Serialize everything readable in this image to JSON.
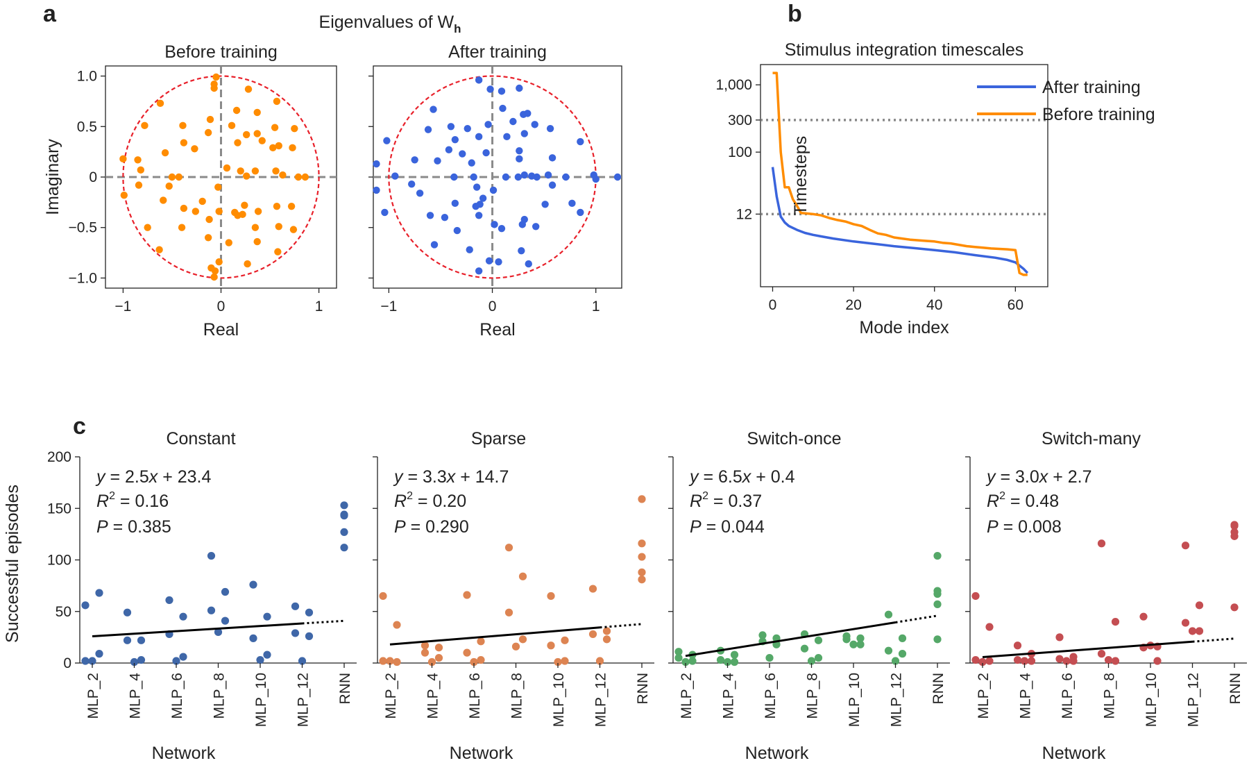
{
  "panel_letters": {
    "a": "a",
    "b": "b",
    "c": "c"
  },
  "colors": {
    "orange": "#ff8c00",
    "blue": "#3a64dc",
    "unit_circle": "#e8202a",
    "axis_dash": "#8a8a8a",
    "grid_dot": "#888888",
    "c_constant": "#3f67a8",
    "c_sparse": "#dd8452",
    "c_switch_once": "#55a868",
    "c_switch_many": "#c44e52"
  },
  "chart_data": [
    {
      "type": "scatter",
      "id": "eig-before",
      "supertitle": "Eigenvalues of W",
      "supertitle_sub": "h",
      "title": "Before training",
      "xlabel": "Real",
      "ylabel": "Imaginary",
      "xlim": [
        -1.18,
        1.18
      ],
      "ylim": [
        -1.1,
        1.1
      ],
      "xticks": [
        -1,
        0,
        1
      ],
      "xtick_labels": [
        "−1",
        "0",
        "1"
      ],
      "yticks": [
        1.0,
        0.5,
        0,
        -0.5,
        -1.0
      ],
      "ytick_labels": [
        "1.0",
        "0.5",
        "0",
        "−0.5",
        "−1.0"
      ],
      "reference_circle_radius": 1,
      "points": [
        [
          -0.05,
          0.99
        ],
        [
          -0.07,
          0.92
        ],
        [
          -0.07,
          0.88
        ],
        [
          -0.62,
          0.73
        ],
        [
          0.28,
          0.87
        ],
        [
          0.57,
          0.75
        ],
        [
          0.16,
          0.66
        ],
        [
          0.37,
          0.64
        ],
        [
          -0.78,
          0.51
        ],
        [
          -0.11,
          0.57
        ],
        [
          -0.13,
          0.44
        ],
        [
          -0.39,
          0.51
        ],
        [
          -0.57,
          0.24
        ],
        [
          -0.38,
          0.34
        ],
        [
          -0.27,
          0.28
        ],
        [
          0.11,
          0.51
        ],
        [
          0.26,
          0.42
        ],
        [
          0.37,
          0.43
        ],
        [
          0.55,
          0.49
        ],
        [
          0.75,
          0.48
        ],
        [
          0.17,
          0.34
        ],
        [
          0.42,
          0.36
        ],
        [
          0.59,
          0.31
        ],
        [
          0.53,
          0.29
        ],
        [
          0.73,
          0.29
        ],
        [
          -1.0,
          0.18
        ],
        [
          -0.85,
          0.17
        ],
        [
          -0.82,
          0.07
        ],
        [
          -0.5,
          0
        ],
        [
          -0.43,
          0
        ],
        [
          0.06,
          0.09
        ],
        [
          0.2,
          0.06
        ],
        [
          0.35,
          0.06
        ],
        [
          0.26,
          0.01
        ],
        [
          0.56,
          0.06
        ],
        [
          0.63,
          0.02
        ],
        [
          0.79,
          0
        ],
        [
          0.86,
          0
        ],
        [
          -0.84,
          -0.08
        ],
        [
          -0.53,
          -0.09
        ],
        [
          -0.03,
          -0.1
        ],
        [
          -0.59,
          -0.23
        ],
        [
          -0.19,
          -0.24
        ],
        [
          -0.38,
          -0.31
        ],
        [
          -0.26,
          -0.34
        ],
        [
          0.24,
          -0.28
        ],
        [
          0.14,
          -0.35
        ],
        [
          0.22,
          -0.37
        ],
        [
          0.38,
          -0.34
        ],
        [
          0.57,
          -0.29
        ],
        [
          0.72,
          -0.29
        ],
        [
          -0.02,
          -0.34
        ],
        [
          -0.75,
          -0.5
        ],
        [
          -0.4,
          -0.5
        ],
        [
          -0.12,
          -0.42
        ],
        [
          0.17,
          -0.38
        ],
        [
          0.35,
          -0.5
        ],
        [
          0.59,
          -0.49
        ],
        [
          0.74,
          -0.52
        ],
        [
          -0.13,
          -0.6
        ],
        [
          0.08,
          -0.65
        ],
        [
          0.37,
          -0.64
        ],
        [
          -0.63,
          -0.72
        ],
        [
          0.58,
          -0.74
        ],
        [
          0.27,
          -0.86
        ],
        [
          -0.06,
          -0.93
        ],
        [
          -0.07,
          -0.99
        ],
        [
          -0.02,
          -0.84
        ],
        [
          -0.1,
          -0.9
        ],
        [
          -0.99,
          -0.18
        ]
      ]
    },
    {
      "type": "scatter",
      "id": "eig-after",
      "title": "After training",
      "xlabel": "Real",
      "xlim": [
        -1.15,
        1.25
      ],
      "ylim": [
        -1.1,
        1.1
      ],
      "xticks": [
        -1,
        0,
        1
      ],
      "xtick_labels": [
        "−1",
        "0",
        "1"
      ],
      "reference_circle_radius": 1,
      "points": [
        [
          -0.13,
          0.96
        ],
        [
          -0.02,
          0.87
        ],
        [
          0.09,
          0.85
        ],
        [
          0.26,
          0.88
        ],
        [
          -0.57,
          0.67
        ],
        [
          0.1,
          0.68
        ],
        [
          0.3,
          0.62
        ],
        [
          0.2,
          0.55
        ],
        [
          0.41,
          0.52
        ],
        [
          0.56,
          0.48
        ],
        [
          -0.62,
          0.47
        ],
        [
          -0.4,
          0.5
        ],
        [
          -0.24,
          0.48
        ],
        [
          -0.04,
          0.52
        ],
        [
          0.34,
          0.63
        ],
        [
          -0.36,
          0.37
        ],
        [
          -0.42,
          0.27
        ],
        [
          -0.13,
          0.4
        ],
        [
          0.14,
          0.4
        ],
        [
          -0.29,
          0.23
        ],
        [
          0.26,
          0.26
        ],
        [
          0.31,
          0.43
        ],
        [
          0.58,
          0.19
        ],
        [
          -1.02,
          0.36
        ],
        [
          -1.12,
          0.13
        ],
        [
          -0.75,
          0.17
        ],
        [
          -0.53,
          0.16
        ],
        [
          -0.2,
          0.14
        ],
        [
          -0.06,
          0.24
        ],
        [
          0.26,
          0.18
        ],
        [
          0.38,
          0.01
        ],
        [
          0.85,
          0.35
        ],
        [
          -0.94,
          0.01
        ],
        [
          -0.37,
          0
        ],
        [
          -0.18,
          0
        ],
        [
          0.13,
          0
        ],
        [
          0.25,
          0
        ],
        [
          0.31,
          0.02
        ],
        [
          0.43,
          0
        ],
        [
          0.54,
          0.02
        ],
        [
          0.71,
          0
        ],
        [
          0.98,
          0.02
        ],
        [
          1.0,
          -0.02
        ],
        [
          1.21,
          0
        ],
        [
          -1.12,
          -0.13
        ],
        [
          -0.78,
          -0.07
        ],
        [
          -0.15,
          -0.1
        ],
        [
          0.58,
          -0.08
        ],
        [
          0.01,
          -0.13
        ],
        [
          -0.7,
          -0.16
        ],
        [
          -0.36,
          -0.26
        ],
        [
          -0.09,
          -0.21
        ],
        [
          -0.12,
          -0.27
        ],
        [
          -0.16,
          -0.29
        ],
        [
          0.51,
          -0.27
        ],
        [
          0.77,
          -0.26
        ],
        [
          -1.04,
          -0.35
        ],
        [
          -0.6,
          -0.38
        ],
        [
          -0.46,
          -0.4
        ],
        [
          -0.13,
          -0.38
        ],
        [
          0.31,
          -0.42
        ],
        [
          0.09,
          -0.51
        ],
        [
          0.29,
          -0.47
        ],
        [
          0.42,
          -0.49
        ],
        [
          0.02,
          -0.47
        ],
        [
          -0.34,
          -0.53
        ],
        [
          -0.56,
          -0.67
        ],
        [
          -0.03,
          -0.83
        ],
        [
          0.28,
          -0.73
        ],
        [
          0.85,
          -0.35
        ],
        [
          -0.22,
          -0.72
        ],
        [
          0.06,
          -0.84
        ],
        [
          0.35,
          -0.86
        ],
        [
          -0.13,
          -0.93
        ]
      ]
    },
    {
      "type": "line",
      "id": "timescales",
      "title": "Stimulus integration timescales",
      "xlabel": "Mode index",
      "ylabel": "Timesteps",
      "xlim": [
        -3,
        68
      ],
      "xticks": [
        0,
        20,
        40,
        60
      ],
      "ylim_log": [
        1,
        2000
      ],
      "yticks": [
        1000,
        300,
        100,
        12
      ],
      "ytick_labels": [
        "1,000",
        "300",
        "100",
        "12"
      ],
      "hlines": [
        300,
        12
      ],
      "legend": "top-right",
      "series": [
        {
          "name": "After training",
          "color": "#3a64dc",
          "x": [
            0,
            1,
            2,
            3,
            4,
            6,
            8,
            10,
            12,
            15,
            20,
            25,
            30,
            35,
            40,
            45,
            50,
            55,
            58,
            60,
            62,
            63
          ],
          "y": [
            60,
            22,
            11,
            9,
            8,
            7,
            6.3,
            5.9,
            5.6,
            5.2,
            4.7,
            4.35,
            4.0,
            3.75,
            3.5,
            3.25,
            2.95,
            2.7,
            2.5,
            2.3,
            1.85,
            1.6
          ]
        },
        {
          "name": "Before training",
          "color": "#ff8c00",
          "x": [
            0,
            1,
            2,
            3,
            4,
            5,
            6,
            7,
            8,
            10,
            12,
            14,
            16,
            18,
            20,
            22,
            24,
            26,
            28,
            30,
            32,
            34,
            36,
            38,
            40,
            42,
            44,
            46,
            48,
            50,
            52,
            54,
            56,
            58,
            60,
            61,
            62,
            63
          ],
          "y": [
            1500,
            1500,
            100,
            30,
            30,
            20,
            16,
            12.5,
            12.3,
            12,
            11.5,
            10.5,
            9.8,
            9.3,
            8.5,
            8,
            7,
            6.2,
            5.9,
            5.4,
            5.2,
            5.0,
            4.9,
            4.8,
            4.7,
            4.5,
            4.4,
            4.2,
            4.0,
            3.9,
            3.8,
            3.7,
            3.65,
            3.6,
            3.5,
            1.6,
            1.5,
            1.5
          ]
        }
      ]
    },
    {
      "type": "scatter",
      "id": "perf-constant",
      "title": "Constant",
      "xlabel": "Network",
      "ylabel": "Successful episodes",
      "categories": [
        "MLP_2",
        "MLP_4",
        "MLP_6",
        "MLP_8",
        "MLP_10",
        "MLP_12",
        "RNN"
      ],
      "ylim": [
        0,
        200
      ],
      "yticks": [
        0,
        50,
        100,
        150,
        200
      ],
      "color": "#3f67a8",
      "fit_label": "y = 2.5x + 23.4",
      "fit": {
        "slope": 2.5,
        "intercept": 23.4
      },
      "r2": "0.16",
      "p": "0.385",
      "groups": [
        [
          2,
          68,
          56,
          9,
          2
        ],
        [
          49,
          22,
          22,
          3,
          1
        ],
        [
          61,
          45,
          28,
          6,
          2
        ],
        [
          104,
          69,
          51,
          41,
          30
        ],
        [
          76,
          45,
          24,
          8,
          3
        ],
        [
          55,
          49,
          29,
          26,
          2
        ],
        [
          153,
          144,
          143,
          127,
          112
        ]
      ]
    },
    {
      "type": "scatter",
      "id": "perf-sparse",
      "title": "Sparse",
      "xlabel": "Network",
      "categories": [
        "MLP_2",
        "MLP_4",
        "MLP_6",
        "MLP_8",
        "MLP_10",
        "MLP_12",
        "RNN"
      ],
      "ylim": [
        0,
        200
      ],
      "yticks": [
        0,
        50,
        100,
        150,
        200
      ],
      "color": "#dd8452",
      "fit_label": "y = 3.3x + 14.7",
      "fit": {
        "slope": 3.3,
        "intercept": 14.7
      },
      "r2": "0.20",
      "p": "0.290",
      "groups": [
        [
          65,
          37,
          2,
          1,
          2
        ],
        [
          17,
          15,
          10,
          5,
          1
        ],
        [
          66,
          21,
          10,
          3,
          1
        ],
        [
          112,
          84,
          49,
          23,
          16
        ],
        [
          65,
          22,
          17,
          2,
          1
        ],
        [
          72,
          31,
          28,
          23,
          2
        ],
        [
          159,
          116,
          103,
          88,
          81
        ]
      ]
    },
    {
      "type": "scatter",
      "id": "perf-switch-once",
      "title": "Switch-once",
      "xlabel": "Network",
      "categories": [
        "MLP_2",
        "MLP_4",
        "MLP_6",
        "MLP_8",
        "MLP_10",
        "MLP_12",
        "RNN"
      ],
      "ylim": [
        0,
        200
      ],
      "yticks": [
        0,
        50,
        100,
        150,
        200
      ],
      "color": "#55a868",
      "fit_label": "y = 6.5x + 0.4",
      "fit": {
        "slope": 6.5,
        "intercept": 0.4
      },
      "r2": "0.37",
      "p": "0.044",
      "groups": [
        [
          11,
          8,
          5,
          2,
          1
        ],
        [
          12,
          8,
          3,
          1,
          1
        ],
        [
          27,
          24,
          21,
          18,
          5
        ],
        [
          28,
          22,
          14,
          5,
          2
        ],
        [
          26,
          24,
          23,
          18,
          18
        ],
        [
          47,
          24,
          12,
          9,
          2
        ],
        [
          104,
          70,
          67,
          57,
          23
        ]
      ]
    },
    {
      "type": "scatter",
      "id": "perf-switch-many",
      "title": "Switch-many",
      "xlabel": "Network",
      "categories": [
        "MLP_2",
        "MLP_4",
        "MLP_6",
        "MLP_8",
        "MLP_10",
        "MLP_12",
        "RNN"
      ],
      "ylim": [
        0,
        200
      ],
      "yticks": [
        0,
        50,
        100,
        150,
        200
      ],
      "color": "#c44e52",
      "fit_label": "y = 3.0x + 2.7",
      "fit": {
        "slope": 3.0,
        "intercept": 2.7
      },
      "r2": "0.48",
      "p": "0.008",
      "groups": [
        [
          65,
          35,
          3,
          2,
          1
        ],
        [
          17,
          9,
          3,
          2,
          2
        ],
        [
          25,
          6,
          4,
          2,
          2
        ],
        [
          116,
          40,
          9,
          2,
          3
        ],
        [
          45,
          16,
          15,
          2,
          17
        ],
        [
          114,
          56,
          39,
          31,
          31
        ],
        [
          134,
          133,
          127,
          123,
          54
        ]
      ]
    }
  ],
  "stat_prefix": {
    "r2": "R",
    "r2_sup": "2",
    "p": "P",
    "eq": " = "
  }
}
